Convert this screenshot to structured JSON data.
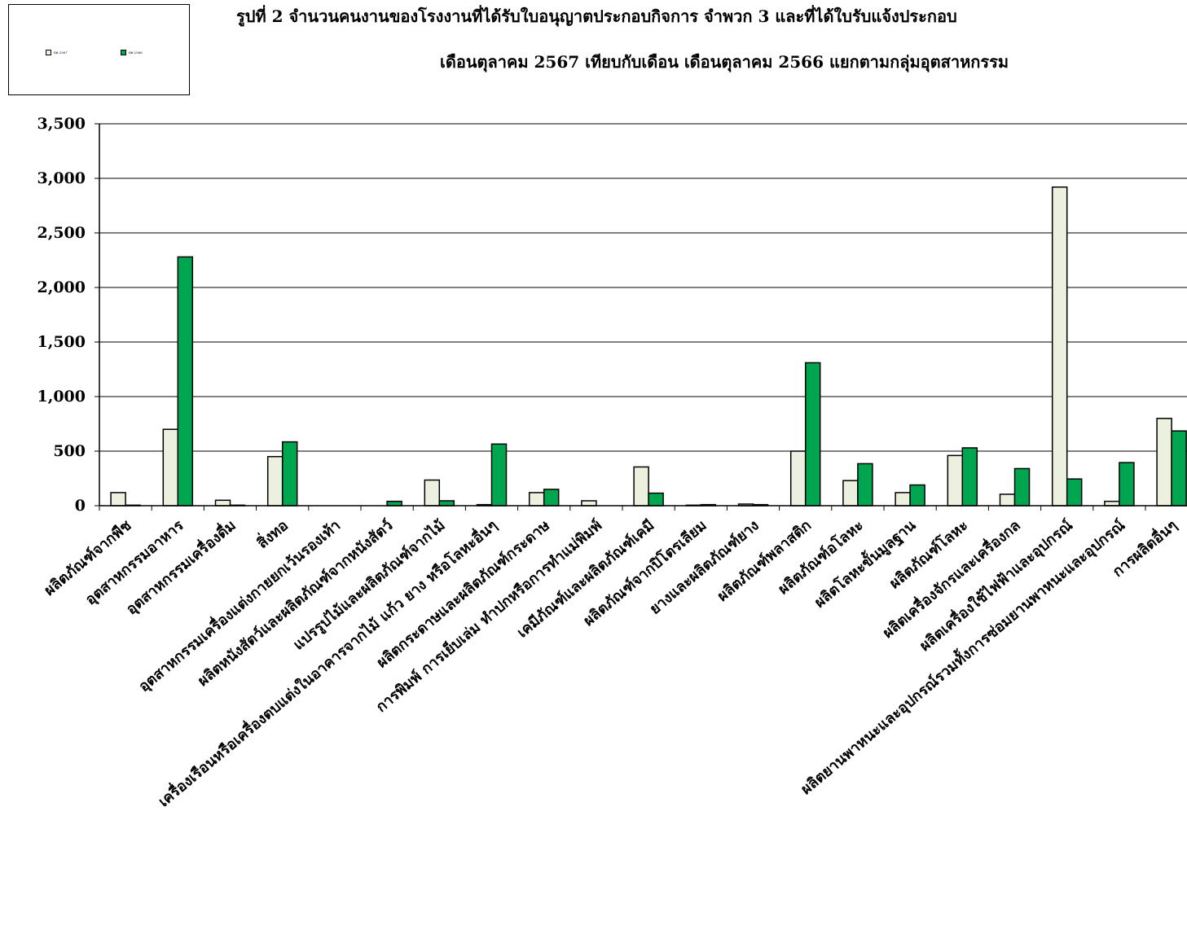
{
  "header": {
    "title_line1": "รูปที่ 2  จำนวนคนงานของโรงงานที่ได้รับใบอนุญาตประกอบกิจการ จำพวก 3 และที่ได้ใบรับแจ้งประกอบ",
    "title_line2": "เดือนตุลาคม 2567 เทียบกับเดือน เดือนตุลาคม 2566 แยกตามกลุ่มอุตสาหกรรม"
  },
  "legend": [
    {
      "label": "ตค.2567",
      "color": "#ebf1de"
    },
    {
      "label": "ตค.2566",
      "color": "#00a64f"
    }
  ],
  "chart_data": {
    "type": "bar",
    "title": "รูปที่ 2  จำนวนคนงานของโรงงานที่ได้รับใบอนุญาตประกอบกิจการ จำพวก 3 และที่ได้ใบรับแจ้งประกอบ เดือนตุลาคม 2567 เทียบกับเดือน เดือนตุลาคม 2566 แยกตามกลุ่มอุตสาหกรรม",
    "xlabel": "",
    "ylabel": "",
    "ylim": [
      0,
      3500
    ],
    "yticks": [
      0,
      500,
      1000,
      1500,
      2000,
      2500,
      3000,
      3500
    ],
    "ytick_labels": [
      "0",
      "500",
      "1,000",
      "1,500",
      "2,000",
      "2,500",
      "3,000",
      "3,500"
    ],
    "grid": true,
    "legend_position": "top-left",
    "categories": [
      "ผลิตภัณฑ์จากพืช",
      "อุตสาหกรรมอาหาร",
      "อุตสาหกรรมเครื่องดื่ม",
      "สิ่งทอ",
      "อุตสาหกรรมเครื่องแต่งกายยกเว้นรองเท้า",
      "ผลิตหนังสัตว์และผลิตภัณฑ์จากหนังสัตว์",
      "แปรรูปไม้และผลิตภัณฑ์จากไม้",
      "เครื่องเรือนหรือเครื่องตบแต่งในอาคารจากไม้ แก้ว ยาง หรือโลหะอื่นๆ",
      "ผลิตกระดาษและผลิตภัณฑ์กระดาษ",
      "การพิมพ์ การเย็บเล่ม ทำปกหรือการทำแม่พิมพ์",
      "เคมีภัณฑ์และผลิตภัณฑ์เคมี",
      "ผลิตภัณฑ์จากปิโตรเลียม",
      "ยางและผลิตภัณฑ์ยาง",
      "ผลิตภัณฑ์พลาสติก",
      "ผลิตภัณฑ์อโลหะ",
      "ผลิตโลหะขั้นมูลฐาน",
      "ผลิตภัณฑ์โลหะ",
      "ผลิตเครื่องจักรและเครื่องกล",
      "ผลิตเครื่องใช้ไฟฟ้าและอุปกรณ์",
      "ผลิตยานพาหนะและอุปกรณ์รวมทั้งการซ่อมยานพาหนะและอุปกรณ์",
      "การผลิตอื่นๆ"
    ],
    "series": [
      {
        "name": "ตค.2567",
        "color": "#ebf1de",
        "values": [
          120,
          700,
          50,
          450,
          0,
          0,
          235,
          10,
          120,
          45,
          355,
          5,
          15,
          500,
          230,
          120,
          460,
          105,
          2920,
          40,
          800
        ]
      },
      {
        "name": "ตค.2566",
        "color": "#00a64f",
        "values": [
          5,
          2280,
          5,
          585,
          0,
          40,
          45,
          565,
          150,
          0,
          115,
          10,
          10,
          1310,
          385,
          190,
          530,
          340,
          245,
          395,
          685
        ]
      }
    ]
  }
}
